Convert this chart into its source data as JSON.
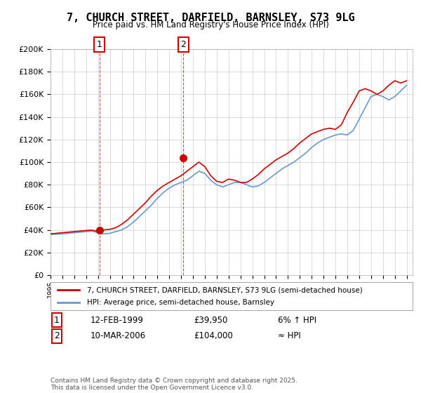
{
  "title": "7, CHURCH STREET, DARFIELD, BARNSLEY, S73 9LG",
  "subtitle": "Price paid vs. HM Land Registry's House Price Index (HPI)",
  "legend_line1": "7, CHURCH STREET, DARFIELD, BARNSLEY, S73 9LG (semi-detached house)",
  "legend_line2": "HPI: Average price, semi-detached house, Barnsley",
  "sale1_label": "1",
  "sale1_date": "12-FEB-1999",
  "sale1_price": "£39,950",
  "sale1_hpi": "6% ↑ HPI",
  "sale1_year": 1999.12,
  "sale1_value": 39950,
  "sale2_label": "2",
  "sale2_date": "10-MAR-2006",
  "sale2_price": "£104,000",
  "sale2_hpi": "≈ HPI",
  "sale2_year": 2006.2,
  "sale2_value": 104000,
  "footnote": "Contains HM Land Registry data © Crown copyright and database right 2025.\nThis data is licensed under the Open Government Licence v3.0.",
  "line_color_red": "#cc0000",
  "line_color_blue": "#6699cc",
  "dashed_color": "#cc0000",
  "background_color": "#ffffff",
  "grid_color": "#cccccc",
  "ylim": [
    0,
    200000
  ],
  "xlim_start": 1995.0,
  "xlim_end": 2025.5,
  "hpi_years": [
    1995,
    1995.5,
    1996,
    1996.5,
    1997,
    1997.5,
    1998,
    1998.5,
    1999,
    1999.5,
    2000,
    2000.5,
    2001,
    2001.5,
    2002,
    2002.5,
    2003,
    2003.5,
    2004,
    2004.5,
    2005,
    2005.5,
    2006,
    2006.5,
    2007,
    2007.5,
    2008,
    2008.5,
    2009,
    2009.5,
    2010,
    2010.5,
    2011,
    2011.5,
    2012,
    2012.5,
    2013,
    2013.5,
    2014,
    2014.5,
    2015,
    2015.5,
    2016,
    2016.5,
    2017,
    2017.5,
    2018,
    2018.5,
    2019,
    2019.5,
    2020,
    2020.5,
    2021,
    2021.5,
    2022,
    2022.5,
    2023,
    2023.5,
    2024,
    2024.5,
    2025
  ],
  "hpi_values": [
    36000,
    36200,
    36500,
    37000,
    37500,
    38000,
    38500,
    39000,
    37500,
    36500,
    37000,
    38500,
    40000,
    43000,
    47000,
    52000,
    57000,
    62000,
    68000,
    73000,
    77000,
    80000,
    82000,
    84000,
    88000,
    92000,
    90000,
    84000,
    80000,
    78000,
    80000,
    82000,
    82000,
    80000,
    78000,
    79000,
    82000,
    86000,
    90000,
    94000,
    97000,
    100000,
    104000,
    108000,
    113000,
    117000,
    120000,
    122000,
    124000,
    125000,
    124000,
    128000,
    138000,
    148000,
    158000,
    160000,
    158000,
    155000,
    158000,
    163000,
    168000
  ],
  "price_years": [
    1995,
    1995.5,
    1996,
    1996.5,
    1997,
    1997.5,
    1998,
    1998.5,
    1999,
    1999.5,
    2000,
    2000.5,
    2001,
    2001.5,
    2002,
    2002.5,
    2003,
    2003.5,
    2004,
    2004.5,
    2005,
    2005.5,
    2006,
    2006.5,
    2007,
    2007.5,
    2008,
    2008.5,
    2009,
    2009.5,
    2010,
    2010.5,
    2011,
    2011.5,
    2012,
    2012.5,
    2013,
    2013.5,
    2014,
    2014.5,
    2015,
    2015.5,
    2016,
    2016.5,
    2017,
    2017.5,
    2018,
    2018.5,
    2019,
    2019.5,
    2020,
    2020.5,
    2021,
    2021.5,
    2022,
    2022.5,
    2023,
    2023.5,
    2024,
    2024.5,
    2025
  ],
  "price_values": [
    36500,
    37000,
    37500,
    38000,
    38500,
    39000,
    39500,
    39800,
    38500,
    40000,
    40500,
    42000,
    45000,
    49000,
    54000,
    59000,
    64000,
    70000,
    75000,
    79000,
    82000,
    85000,
    88000,
    92000,
    96000,
    100000,
    96000,
    88000,
    83000,
    82000,
    85000,
    84000,
    82000,
    82000,
    85000,
    89000,
    94000,
    98000,
    102000,
    105000,
    108000,
    112000,
    117000,
    121000,
    125000,
    127000,
    129000,
    130000,
    129000,
    133000,
    144000,
    153000,
    163000,
    165000,
    163000,
    160000,
    163000,
    168000,
    172000,
    170000,
    172000
  ]
}
